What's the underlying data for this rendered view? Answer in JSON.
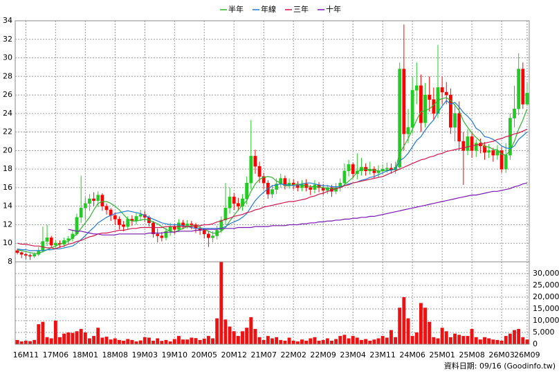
{
  "chart_data": {
    "type": "candlestick",
    "categories": [
      null,
      null,
      "16M11",
      null,
      null,
      null,
      null,
      null,
      null,
      "17M06",
      null,
      null,
      null,
      null,
      null,
      null,
      "18M01",
      null,
      null,
      null,
      null,
      null,
      null,
      "18M08",
      null,
      null,
      null,
      null,
      null,
      null,
      "19M03",
      null,
      null,
      null,
      null,
      null,
      null,
      "19M10",
      null,
      null,
      null,
      null,
      null,
      null,
      "20M05",
      null,
      null,
      null,
      null,
      null,
      null,
      "20M12",
      null,
      null,
      null,
      null,
      null,
      null,
      "21M07",
      null,
      null,
      null,
      null,
      null,
      null,
      "22M02",
      null,
      null,
      null,
      null,
      null,
      null,
      "22M09",
      null,
      null,
      null,
      null,
      null,
      null,
      "23M04",
      null,
      null,
      null,
      null,
      null,
      null,
      "23M11",
      null,
      null,
      null,
      null,
      null,
      null,
      "24M06",
      null,
      null,
      null,
      null,
      null,
      null,
      "25M01",
      null,
      null,
      null,
      null,
      null,
      null,
      "25M08",
      null,
      null,
      null,
      null,
      null,
      null,
      "26M03",
      null,
      null,
      null,
      null,
      null,
      "26M09"
    ],
    "open": [
      9.2,
      9.0,
      8.8,
      8.7,
      8.6,
      8.8,
      9.2,
      10.2,
      10.6,
      9.8,
      10.0,
      9.9,
      10.3,
      10.5,
      11.0,
      12.8,
      13.8,
      14.3,
      14.8,
      14.6,
      15.2,
      14.0,
      13.6,
      13.0,
      12.6,
      12.0,
      11.8,
      12.6,
      12.4,
      12.9,
      13.1,
      12.8,
      12.2,
      11.0,
      10.8,
      10.6,
      11.3,
      11.8,
      11.5,
      12.2,
      11.9,
      12.1,
      12.0,
      11.6,
      11.4,
      11.0,
      10.6,
      10.8,
      11.4,
      12.5,
      13.8,
      15.0,
      14.3,
      14.0,
      14.8,
      16.5,
      19.4,
      18.3,
      17.2,
      16.5,
      15.3,
      15.8,
      16.4,
      17.0,
      16.2,
      16.5,
      16.3,
      16.0,
      16.4,
      16.0,
      15.8,
      16.3,
      16.0,
      15.7,
      16.0,
      15.6,
      16.0,
      16.5,
      17.8,
      18.5,
      17.5,
      17.8,
      18.2,
      17.8,
      18.0,
      17.6,
      17.8,
      18.0,
      18.1,
      17.9,
      18.2,
      28.8,
      21.8,
      22.5,
      26.5,
      27.0,
      23.0,
      26.0,
      25.5,
      24.0,
      26.8,
      26.3,
      26.0,
      22.5,
      24.0,
      21.0,
      20.0,
      21.5,
      20.0,
      20.8,
      20.5,
      19.8,
      20.0,
      19.5,
      20.0,
      18.0,
      19.5,
      23.5,
      24.5,
      28.8,
      25.0
    ],
    "high": [
      9.4,
      9.1,
      9.0,
      8.9,
      9.0,
      9.6,
      11.8,
      12.0,
      10.8,
      10.3,
      10.3,
      10.6,
      10.8,
      11.4,
      13.2,
      17.3,
      15.0,
      15.3,
      15.5,
      15.6,
      15.4,
      14.3,
      13.8,
      13.3,
      12.9,
      12.4,
      12.9,
      13.0,
      13.3,
      13.6,
      13.5,
      13.0,
      12.4,
      11.6,
      11.2,
      11.7,
      12.2,
      12.1,
      12.6,
      12.5,
      12.5,
      12.4,
      12.2,
      11.9,
      11.6,
      11.3,
      11.3,
      11.9,
      12.9,
      16.5,
      16.0,
      15.4,
      14.9,
      15.3,
      17.2,
      23.3,
      20.1,
      18.8,
      17.6,
      16.8,
      16.3,
      17.0,
      17.5,
      17.3,
      17.0,
      16.9,
      16.7,
      16.8,
      16.9,
      16.3,
      16.8,
      16.6,
      16.4,
      16.3,
      16.3,
      16.5,
      17.0,
      18.6,
      19.0,
      18.7,
      19.7,
      19.2,
      18.6,
      18.8,
      18.3,
      18.4,
      18.5,
      18.7,
      18.6,
      18.8,
      29.5,
      33.6,
      24.5,
      28.0,
      29.5,
      28.2,
      27.3,
      28.0,
      26.8,
      31.4,
      28.0,
      27.4,
      26.7,
      25.0,
      25.3,
      22.0,
      22.3,
      22.0,
      21.2,
      21.3,
      20.9,
      20.7,
      20.3,
      20.6,
      20.4,
      20.8,
      24.0,
      27.0,
      30.5,
      29.5,
      27.3
    ],
    "low": [
      8.8,
      8.4,
      8.3,
      8.2,
      8.4,
      8.6,
      9.0,
      9.7,
      9.5,
      9.4,
      9.5,
      9.6,
      10.0,
      10.2,
      10.8,
      12.2,
      12.5,
      13.5,
      14.0,
      13.9,
      13.5,
      13.1,
      12.4,
      12.0,
      11.5,
      11.3,
      11.5,
      11.9,
      12.0,
      12.4,
      12.3,
      11.8,
      10.6,
      10.1,
      10.2,
      10.3,
      10.8,
      11.0,
      11.2,
      11.5,
      11.6,
      11.5,
      11.1,
      10.9,
      10.5,
      9.6,
      10.1,
      10.4,
      11.1,
      12.0,
      13.2,
      13.6,
      13.5,
      13.5,
      14.2,
      15.8,
      17.5,
      16.5,
      15.8,
      14.8,
      14.9,
      15.3,
      16.0,
      15.8,
      15.9,
      15.8,
      15.6,
      15.6,
      15.6,
      15.2,
      15.4,
      15.5,
      15.2,
      15.3,
      15.0,
      15.3,
      15.6,
      16.2,
      17.2,
      17.0,
      16.9,
      17.3,
      17.3,
      17.4,
      17.0,
      17.1,
      17.4,
      17.6,
      17.5,
      17.5,
      18.0,
      20.0,
      20.8,
      21.8,
      25.0,
      22.0,
      22.5,
      24.2,
      23.3,
      23.5,
      25.0,
      25.0,
      21.8,
      21.0,
      20.0,
      16.3,
      19.5,
      19.2,
      19.3,
      19.7,
      19.0,
      19.2,
      18.8,
      19.0,
      17.6,
      17.6,
      19.0,
      22.5,
      23.8,
      24.5,
      24.8
    ],
    "close": [
      9.0,
      8.8,
      8.7,
      8.6,
      8.8,
      9.2,
      10.2,
      10.6,
      9.8,
      10.0,
      9.9,
      10.3,
      10.5,
      11.0,
      12.8,
      13.8,
      14.3,
      14.8,
      14.6,
      15.2,
      14.0,
      13.6,
      13.0,
      12.6,
      12.0,
      11.8,
      12.6,
      12.4,
      12.9,
      13.1,
      12.8,
      12.2,
      11.0,
      10.8,
      10.6,
      11.3,
      11.8,
      11.5,
      12.2,
      11.9,
      12.1,
      12.0,
      11.6,
      11.4,
      11.0,
      10.6,
      10.8,
      11.4,
      12.5,
      13.8,
      15.0,
      14.3,
      14.0,
      14.8,
      16.5,
      19.4,
      18.3,
      17.2,
      16.5,
      15.3,
      15.8,
      16.4,
      17.0,
      16.2,
      16.5,
      16.3,
      16.0,
      16.4,
      16.0,
      15.8,
      16.3,
      16.0,
      15.7,
      16.0,
      15.6,
      16.0,
      16.5,
      17.8,
      18.5,
      17.5,
      17.8,
      18.2,
      17.8,
      18.0,
      17.6,
      17.8,
      18.0,
      18.1,
      17.9,
      18.2,
      28.8,
      21.8,
      22.5,
      26.5,
      27.0,
      23.0,
      26.0,
      25.5,
      24.0,
      26.8,
      26.3,
      26.0,
      22.5,
      24.0,
      21.0,
      20.0,
      21.5,
      20.0,
      20.8,
      20.5,
      19.8,
      20.0,
      19.5,
      20.0,
      18.0,
      19.5,
      23.5,
      24.5,
      28.8,
      25.0,
      26.2
    ],
    "up_color": "#22cc22",
    "down_color": "#ff0000",
    "ylim": [
      8,
      34
    ],
    "yticks": [
      8,
      10,
      12,
      14,
      16,
      18,
      20,
      22,
      24,
      26,
      28,
      30,
      32,
      34
    ],
    "grid": true,
    "legend": "top",
    "series": [
      {
        "name": "半年",
        "color": "#2db52d",
        "values": [
          9.3,
          9.2,
          9.1,
          9.0,
          8.9,
          8.9,
          9.1,
          9.3,
          9.5,
          9.7,
          9.9,
          10.1,
          10.2,
          10.6,
          11.0,
          11.6,
          12.2,
          12.8,
          13.6,
          14.3,
          14.5,
          14.5,
          14.3,
          14.0,
          13.6,
          13.1,
          12.6,
          12.4,
          12.4,
          12.5,
          12.6,
          12.5,
          12.3,
          12.1,
          11.8,
          11.5,
          11.3,
          11.2,
          11.4,
          11.6,
          11.8,
          11.9,
          11.9,
          11.7,
          11.5,
          11.3,
          11.1,
          11.1,
          11.3,
          11.7,
          12.4,
          13.0,
          13.6,
          14.1,
          14.6,
          15.6,
          16.4,
          16.9,
          17.1,
          17.2,
          17.1,
          16.7,
          16.5,
          16.2,
          16.2,
          16.3,
          16.4,
          16.3,
          16.2,
          16.1,
          16.1,
          16.1,
          16.0,
          15.9,
          15.9,
          15.9,
          16.0,
          16.3,
          16.7,
          17.1,
          17.7,
          18.0,
          18.0,
          17.9,
          17.9,
          17.8,
          17.8,
          17.9,
          17.9,
          18.0,
          19.7,
          20.5,
          21.3,
          22.3,
          23.3,
          24.2,
          24.3,
          24.5,
          24.9,
          25.4,
          25.6,
          25.7,
          25.4,
          24.9,
          24.3,
          23.2,
          22.5,
          21.9,
          21.4,
          21.0,
          20.4,
          20.4,
          20.1,
          20.1,
          19.6,
          19.5,
          20.0,
          21.0,
          22.3,
          23.3,
          24.5
        ]
      },
      {
        "name": "年線",
        "color": "#1e78d2",
        "values": [
          9.4,
          9.3,
          9.3,
          9.2,
          9.2,
          9.2,
          9.2,
          9.3,
          9.3,
          9.4,
          9.4,
          9.5,
          9.6,
          9.7,
          10.0,
          10.4,
          10.8,
          11.3,
          11.7,
          12.2,
          12.5,
          12.8,
          13.0,
          13.2,
          13.3,
          13.4,
          13.5,
          13.4,
          13.3,
          13.2,
          13.0,
          12.8,
          12.6,
          12.4,
          12.2,
          12.1,
          12.0,
          12.0,
          12.0,
          11.9,
          11.8,
          11.7,
          11.6,
          11.6,
          11.6,
          11.6,
          11.6,
          11.6,
          11.6,
          11.8,
          12.1,
          12.3,
          12.5,
          12.8,
          13.2,
          13.9,
          14.6,
          15.1,
          15.5,
          15.9,
          16.2,
          16.3,
          16.4,
          16.3,
          16.3,
          16.2,
          16.2,
          16.4,
          16.5,
          16.5,
          16.4,
          16.3,
          16.2,
          16.2,
          16.1,
          16.1,
          16.1,
          16.2,
          16.4,
          16.5,
          16.6,
          16.8,
          16.9,
          17.1,
          17.2,
          17.4,
          17.6,
          17.8,
          17.9,
          18.0,
          18.9,
          19.2,
          19.7,
          20.4,
          21.1,
          21.5,
          22.2,
          22.8,
          23.3,
          24.1,
          24.8,
          25.4,
          25.0,
          25.2,
          24.7,
          24.1,
          23.7,
          23.2,
          22.4,
          22.1,
          21.5,
          21.4,
          21.2,
          20.9,
          20.5,
          20.3,
          20.2,
          20.5,
          21.2,
          21.6,
          22.0
        ]
      },
      {
        "name": "三年",
        "color": "#d2144b",
        "values": [
          10.0,
          9.9,
          9.9,
          9.8,
          9.7,
          9.7,
          9.6,
          9.5,
          9.5,
          9.4,
          9.6,
          9.7,
          9.9,
          10.0,
          10.2,
          10.3,
          10.5,
          10.7,
          10.8,
          11.0,
          11.1,
          11.1,
          11.2,
          11.3,
          11.4,
          11.4,
          11.5,
          11.6,
          11.6,
          11.7,
          11.7,
          11.7,
          11.7,
          11.7,
          11.7,
          11.8,
          11.8,
          11.8,
          11.8,
          11.8,
          11.8,
          11.8,
          11.9,
          11.9,
          12.0,
          12.0,
          12.1,
          12.3,
          12.4,
          12.6,
          12.7,
          12.9,
          13.0,
          13.1,
          13.3,
          13.4,
          13.6,
          13.7,
          13.9,
          14.0,
          14.1,
          14.2,
          14.3,
          14.4,
          14.5,
          14.5,
          14.6,
          14.7,
          14.8,
          15.0,
          15.1,
          15.3,
          15.4,
          15.6,
          15.7,
          15.9,
          16.0,
          16.2,
          16.3,
          16.5,
          16.6,
          16.7,
          16.8,
          16.9,
          17.0,
          17.1,
          17.2,
          17.4,
          17.6,
          17.8,
          18.0,
          18.2,
          18.4,
          18.6,
          18.8,
          19.0,
          19.1,
          19.3,
          19.4,
          19.6,
          19.7,
          19.9,
          20.0,
          20.1,
          20.2,
          20.3,
          20.4,
          20.5,
          20.6,
          20.7,
          20.8,
          20.9,
          21.0,
          21.2,
          21.3,
          21.5,
          21.6,
          21.8,
          21.9,
          22.1,
          22.3
        ]
      },
      {
        "name": "十年",
        "color": "#7814b4",
        "values": [
          null,
          null,
          null,
          null,
          null,
          null,
          null,
          null,
          null,
          null,
          null,
          null,
          11.5,
          11.4,
          11.3,
          11.3,
          11.2,
          11.1,
          11.0,
          11.0,
          10.9,
          10.9,
          10.9,
          10.9,
          11.0,
          11.0,
          11.0,
          11.0,
          11.0,
          11.0,
          11.0,
          11.1,
          11.1,
          11.1,
          11.1,
          11.2,
          11.2,
          11.2,
          11.3,
          11.3,
          11.3,
          11.3,
          11.4,
          11.4,
          11.5,
          11.5,
          11.5,
          11.5,
          11.6,
          11.6,
          11.6,
          11.6,
          11.7,
          11.7,
          11.7,
          11.7,
          11.8,
          11.8,
          11.8,
          11.8,
          11.9,
          11.9,
          11.9,
          11.9,
          12.0,
          12.0,
          12.0,
          12.1,
          12.1,
          12.2,
          12.2,
          12.3,
          12.3,
          12.4,
          12.4,
          12.5,
          12.5,
          12.6,
          12.6,
          12.7,
          12.7,
          12.8,
          12.8,
          12.9,
          12.9,
          13.0,
          13.1,
          13.2,
          13.3,
          13.4,
          13.5,
          13.6,
          13.7,
          13.8,
          13.9,
          14.0,
          14.1,
          14.2,
          14.3,
          14.4,
          14.5,
          14.6,
          14.7,
          14.8,
          14.9,
          15.0,
          15.1,
          15.2,
          15.2,
          15.3,
          15.4,
          15.5,
          15.6,
          15.6,
          15.7,
          15.8,
          15.9,
          16.1,
          16.2,
          16.4,
          16.5
        ]
      }
    ],
    "volume": {
      "color": "#ee1111",
      "values": [
        1800,
        1200,
        1500,
        1300,
        1800,
        8500,
        9500,
        3000,
        2500,
        10000,
        3000,
        4500,
        5000,
        4800,
        5500,
        6500,
        5000,
        2500,
        3500,
        7000,
        2800,
        3200,
        2000,
        2500,
        1800,
        1500,
        2200,
        1800,
        1200,
        1600,
        3000,
        2800,
        1500,
        2500,
        1400,
        1800,
        1200,
        2200,
        3500,
        2000,
        2000,
        2800,
        2600,
        1800,
        2400,
        3500,
        2500,
        11000,
        35000,
        10500,
        7500,
        5500,
        3500,
        5500,
        7000,
        11500,
        6500,
        3000,
        1800,
        3500,
        2500,
        3000,
        1800,
        1500,
        2800,
        1500,
        1200,
        2000,
        1500,
        2500,
        3000,
        1500,
        1800,
        2500,
        1500,
        2200,
        3500,
        4000,
        2500,
        3500,
        2800,
        1800,
        2200,
        1500,
        2000,
        2500,
        3500,
        2800,
        6000,
        3000,
        15500,
        20000,
        11000,
        3500,
        5000,
        17500,
        15500,
        9500,
        3000,
        2500,
        7000,
        5500,
        3000,
        4500,
        4000,
        3500,
        3500,
        6500,
        3000,
        2000,
        3000,
        2500,
        2000,
        1800,
        1500,
        3500,
        4500,
        6000,
        6500,
        3000,
        2000
      ],
      "ylim": [
        0,
        35000
      ],
      "yticks": [
        0,
        {
          "value": 5000,
          "label": "5,000"
        },
        {
          "value": 10000,
          "label": "10,000"
        },
        {
          "value": 15000,
          "label": "15,000"
        },
        {
          "value": 20000,
          "label": "20,000"
        },
        {
          "value": 25000,
          "label": "25,000"
        },
        {
          "value": 30000,
          "label": "30,000"
        }
      ]
    },
    "footnote": "資料日期: 09/16 (Goodinfo.tw)"
  }
}
